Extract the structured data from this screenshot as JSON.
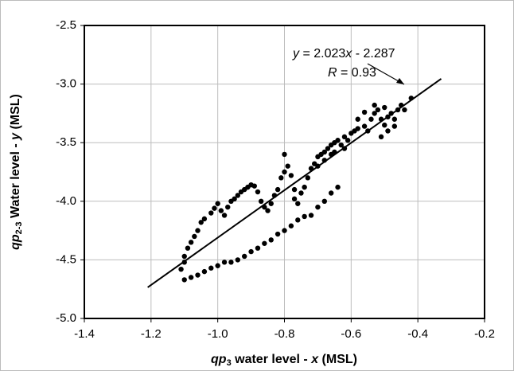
{
  "chart_data": {
    "type": "scatter",
    "color": "#000000",
    "grid": true,
    "x_label": [
      "qp",
      "3",
      " water level - ",
      "x",
      " (MSL)"
    ],
    "y_label": [
      "qp",
      "2-3",
      " Water level - ",
      "y",
      " (MSL)"
    ],
    "annotations": [
      [
        "y",
        " = 2.023",
        "x",
        " - 2.287"
      ],
      [
        "R",
        " = 0.93"
      ]
    ],
    "xlim": [
      -1.4,
      -0.2
    ],
    "xticks": [
      -1.4,
      {
        "value": -1.2,
        "label": "-1.2"
      },
      {
        "value": -1.0,
        "label": "-1.0"
      },
      -0.8,
      -0.6,
      -0.4,
      -0.2
    ],
    "ylim": [
      -5.0,
      -2.5
    ],
    "yticks": [
      {
        "value": -5.0,
        "label": "-5.0"
      },
      {
        "value": -4.5,
        "label": "-4.5"
      },
      {
        "value": -4.0,
        "label": "-4.0"
      },
      {
        "value": -3.5,
        "label": "-3.5"
      },
      {
        "value": -3.0,
        "label": "-3.0"
      },
      -2.5
    ],
    "trendline": {
      "x": [
        -1.21,
        -0.33
      ],
      "y": [
        -4.735,
        -2.955
      ]
    },
    "x": [
      -1.1,
      -1.08,
      -1.06,
      -1.04,
      -1.02,
      -1.0,
      -0.98,
      -0.96,
      -0.94,
      -0.92,
      -0.9,
      -0.88,
      -0.86,
      -0.84,
      -0.82,
      -0.8,
      -0.78,
      -0.76,
      -0.74,
      -0.72,
      -0.7,
      -0.68,
      -0.66,
      -0.64,
      -1.11,
      -1.1,
      -1.1,
      -1.09,
      -1.08,
      -1.07,
      -1.06,
      -1.05,
      -1.04,
      -1.02,
      -1.01,
      -1.0,
      -0.99,
      -0.98,
      -0.97,
      -0.96,
      -0.95,
      -0.94,
      -0.93,
      -0.92,
      -0.91,
      -0.9,
      -0.89,
      -0.88,
      -0.87,
      -0.86,
      -0.85,
      -0.84,
      -0.83,
      -0.82,
      -0.81,
      -0.8,
      -0.8,
      -0.79,
      -0.78,
      -0.77,
      -0.77,
      -0.76,
      -0.75,
      -0.74,
      -0.73,
      -0.72,
      -0.71,
      -0.7,
      -0.69,
      -0.68,
      -0.67,
      -0.66,
      -0.65,
      -0.64,
      -0.66,
      -0.68,
      -0.63,
      -0.62,
      -0.61,
      -0.6,
      -0.59,
      -0.58,
      -0.56,
      -0.62,
      -0.65,
      -0.7,
      -0.55,
      -0.54,
      -0.53,
      -0.52,
      -0.51,
      -0.5,
      -0.5,
      -0.49,
      -0.48,
      -0.47,
      -0.46,
      -0.45,
      -0.44,
      -0.42,
      -0.49,
      -0.51,
      -0.53,
      -0.56,
      -0.58,
      -0.47
    ],
    "values": [
      -4.67,
      -4.65,
      -4.63,
      -4.6,
      -4.57,
      -4.55,
      -4.52,
      -4.52,
      -4.5,
      -4.47,
      -4.43,
      -4.4,
      -4.36,
      -4.33,
      -4.28,
      -4.25,
      -4.21,
      -4.16,
      -4.13,
      -4.12,
      -4.05,
      -4.0,
      -3.93,
      -3.88,
      -4.58,
      -4.52,
      -4.47,
      -4.4,
      -4.35,
      -4.3,
      -4.25,
      -4.18,
      -4.15,
      -4.1,
      -4.06,
      -4.02,
      -4.08,
      -4.12,
      -4.05,
      -4.0,
      -3.98,
      -3.95,
      -3.92,
      -3.9,
      -3.88,
      -3.86,
      -3.87,
      -3.92,
      -4.0,
      -4.05,
      -4.08,
      -4.02,
      -3.95,
      -3.9,
      -3.8,
      -3.75,
      -3.6,
      -3.7,
      -3.78,
      -3.9,
      -3.98,
      -4.02,
      -3.93,
      -3.88,
      -3.8,
      -3.72,
      -3.68,
      -3.62,
      -3.6,
      -3.58,
      -3.55,
      -3.52,
      -3.5,
      -3.48,
      -3.6,
      -3.65,
      -3.52,
      -3.45,
      -3.48,
      -3.42,
      -3.4,
      -3.38,
      -3.36,
      -3.55,
      -3.58,
      -3.7,
      -3.4,
      -3.3,
      -3.25,
      -3.22,
      -3.3,
      -3.35,
      -3.2,
      -3.28,
      -3.25,
      -3.3,
      -3.22,
      -3.18,
      -3.22,
      -3.12,
      -3.4,
      -3.45,
      -3.18,
      -3.24,
      -3.3,
      -3.36
    ]
  }
}
